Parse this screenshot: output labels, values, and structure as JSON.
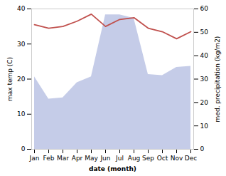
{
  "chart_data": {
    "type": "line",
    "categories": [
      "Jan",
      "Feb",
      "Mar",
      "Apr",
      "May",
      "Jun",
      "Jul",
      "Aug",
      "Sep",
      "Oct",
      "Nov",
      "Dec"
    ],
    "xlabel": "date (month)",
    "ylabel": "max temp (C)",
    "y2label": "med. precipitation (kg/m2)",
    "series": [
      {
        "type": "area",
        "axis": "y2",
        "color": "#c5cce8",
        "values": [
          31.0,
          21.5,
          22.0,
          28.5,
          31.0,
          57.5,
          57.5,
          56.0,
          32.0,
          31.5,
          35.0,
          35.5
        ]
      },
      {
        "type": "line",
        "color": "#c0504d",
        "values": [
          35.5,
          34.5,
          35.0,
          36.5,
          38.5,
          35.0,
          37.0,
          37.5,
          34.5,
          33.5,
          31.5,
          33.5
        ]
      }
    ],
    "ylim": [
      0,
      40
    ],
    "yticks": [
      0,
      10,
      20,
      30,
      40
    ],
    "y2lim": [
      0,
      60
    ],
    "y2ticks": [
      0,
      10,
      20,
      30,
      40,
      50,
      60
    ],
    "grid": false
  }
}
